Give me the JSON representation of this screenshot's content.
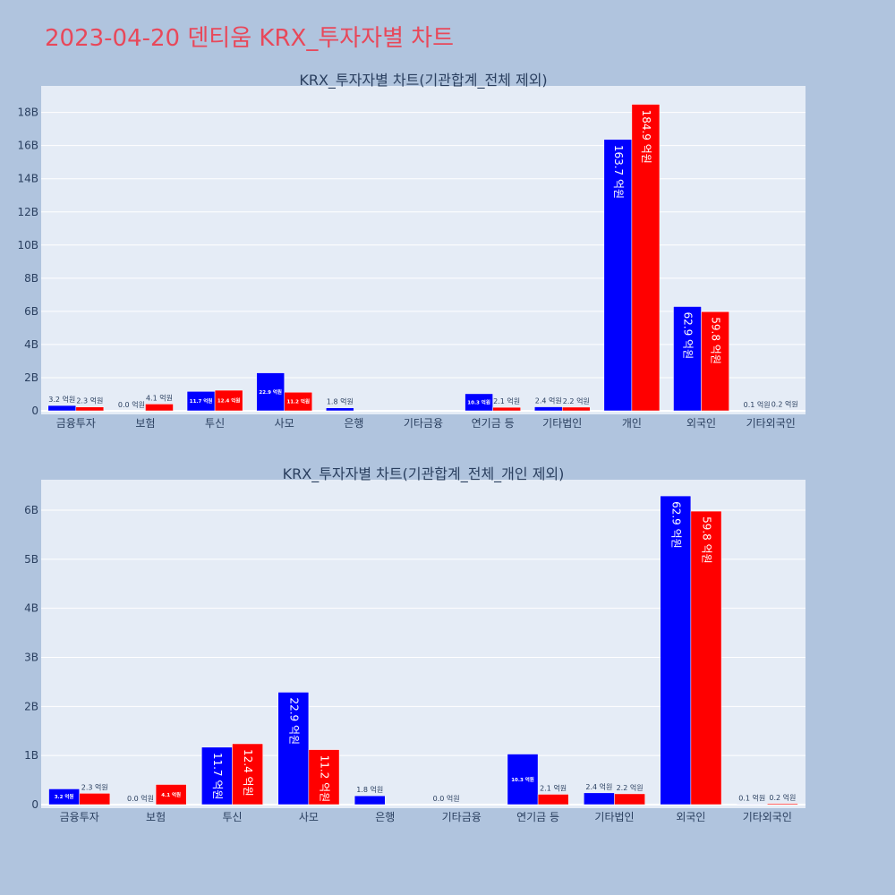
{
  "page": {
    "title": "2023-04-20 덴티움 KRX_투자자별 차트"
  },
  "colors": {
    "series1": "#0000ff",
    "series2": "#ff0000",
    "plot_bg": "#e5ecf6",
    "page_bg": "#b0c4de",
    "title": "#e8485a"
  },
  "chart_data": [
    {
      "type": "bar",
      "title": "KRX_투자자별 차트(기관합계_전체 제외)",
      "categories": [
        "금융투자",
        "보험",
        "투신",
        "사모",
        "은행",
        "기타금융",
        "연기금 등",
        "기타법인",
        "개인",
        "외국인",
        "기타외국인"
      ],
      "yticks": [
        "0",
        "2B",
        "4B",
        "6B",
        "8B",
        "10B",
        "12B",
        "14B",
        "16B",
        "18B"
      ],
      "ylim": [
        0,
        19600000000
      ],
      "series": [
        {
          "values": [
            320000000,
            0,
            1170000000,
            2290000000,
            180000000,
            0,
            1030000000,
            240000000,
            16370000000,
            6290000000,
            10000000
          ],
          "labels": [
            "3.2 억원",
            "0.0 억원",
            "11.7 억원",
            "22.9 억원",
            "1.8 억원",
            "",
            "10.3 억원",
            "2.4 억원",
            "163.7 억원",
            "62.9 억원",
            "0.1 억원"
          ]
        },
        {
          "values": [
            230000000,
            410000000,
            1240000000,
            1120000000,
            0,
            0,
            210000000,
            220000000,
            18490000000,
            5980000000,
            20000000
          ],
          "labels": [
            "2.3 억원",
            "4.1 억원",
            "12.4 억원",
            "11.2 억원",
            "",
            "",
            "2.1 억원",
            "2.2 억원",
            "184.9 억원",
            "59.8 억원",
            "0.2 억원"
          ]
        }
      ]
    },
    {
      "type": "bar",
      "title": "KRX_투자자별 차트(기관합계_전체_개인 제외)",
      "categories": [
        "금융투자",
        "보험",
        "투신",
        "사모",
        "은행",
        "기타금융",
        "연기금 등",
        "기타법인",
        "외국인",
        "기타외국인"
      ],
      "yticks": [
        "0",
        "1B",
        "2B",
        "3B",
        "4B",
        "5B",
        "6B"
      ],
      "ylim": [
        0,
        6620000000
      ],
      "series": [
        {
          "values": [
            320000000,
            0,
            1170000000,
            2290000000,
            180000000,
            0,
            1030000000,
            240000000,
            6290000000,
            10000000
          ],
          "labels": [
            "3.2 억원",
            "0.0 억원",
            "11.7 억원",
            "22.9 억원",
            "1.8 억원",
            "0.0 억원",
            "10.3 억원",
            "2.4 억원",
            "62.9 억원",
            "0.1 억원"
          ]
        },
        {
          "values": [
            230000000,
            410000000,
            1240000000,
            1120000000,
            0,
            0,
            210000000,
            220000000,
            5980000000,
            20000000
          ],
          "labels": [
            "2.3 억원",
            "4.1 억원",
            "12.4 억원",
            "11.2 억원",
            "",
            "",
            "2.1 억원",
            "2.2 억원",
            "59.8 억원",
            "0.2 억원"
          ]
        }
      ]
    }
  ]
}
